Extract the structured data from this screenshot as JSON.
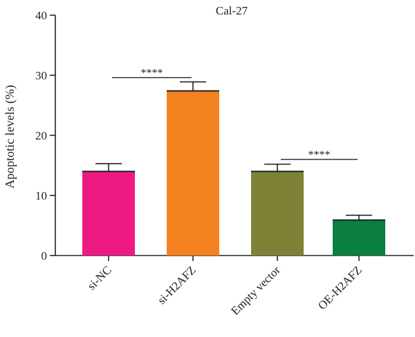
{
  "chart_data": {
    "type": "bar",
    "title": "Cal-27",
    "ylabel": "Apoptotic levels (%)",
    "xlabel": "",
    "ylim": [
      0,
      40
    ],
    "yticks": [
      0,
      10,
      20,
      30,
      40
    ],
    "categories": [
      "si-NC",
      "si-H2AFZ",
      "Empty vector",
      "OE-H2AFZ"
    ],
    "values": [
      14.0,
      27.4,
      14.0,
      5.9
    ],
    "errors": [
      1.3,
      1.5,
      1.2,
      0.8
    ],
    "colors": [
      "#ee1a82",
      "#f58220",
      "#7e8236",
      "#0b7f3f"
    ],
    "significance": [
      {
        "from": 0,
        "to": 1,
        "y": 29.6,
        "label": "****"
      },
      {
        "from": 2,
        "to": 3,
        "y": 16.0,
        "label": "****"
      }
    ],
    "grid": false,
    "legend": "none"
  }
}
